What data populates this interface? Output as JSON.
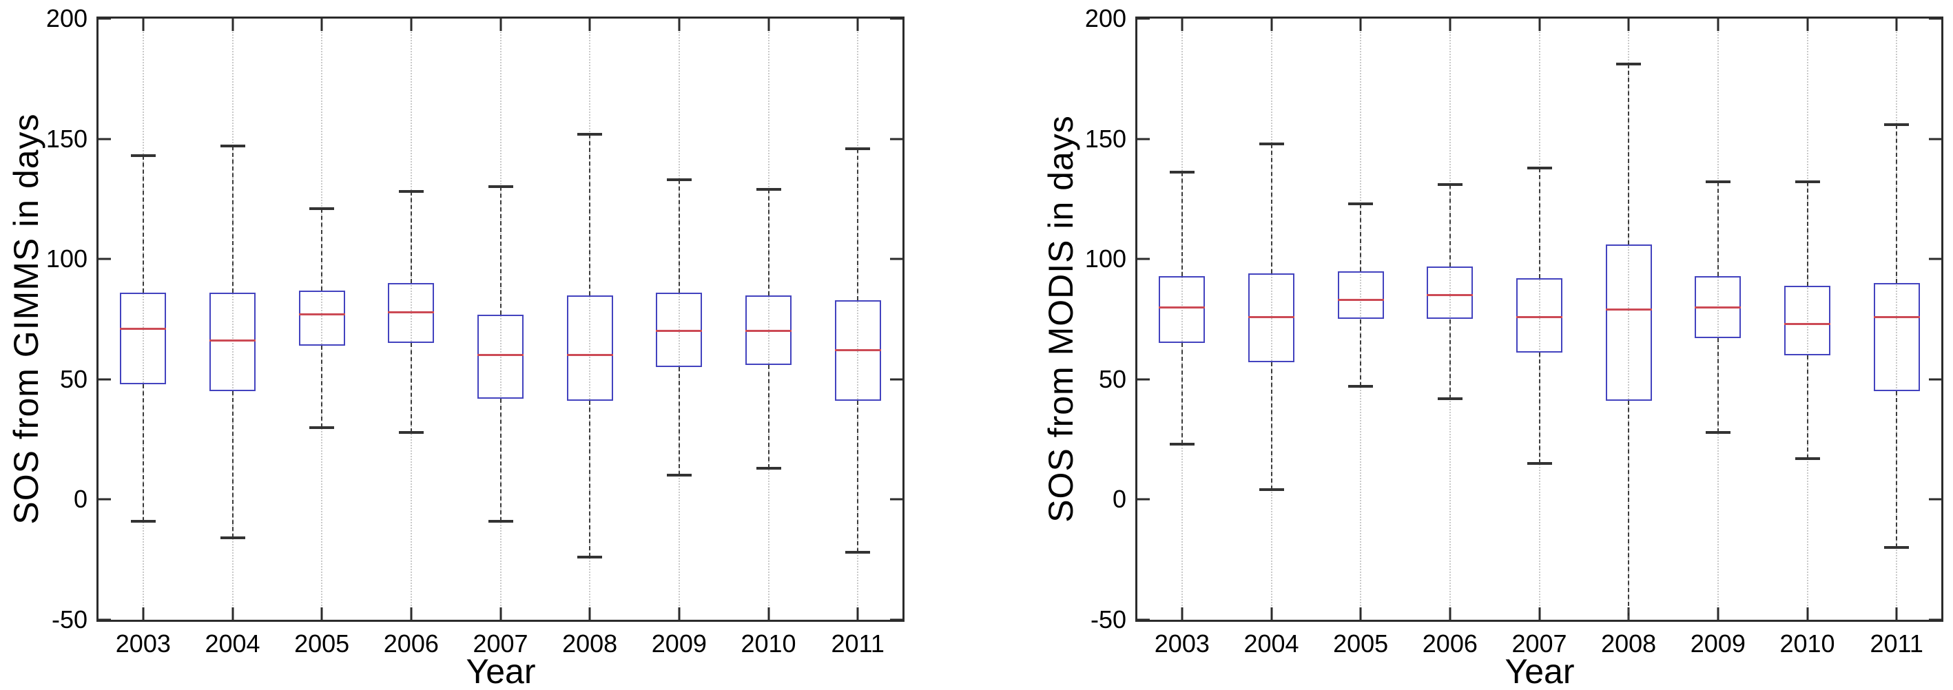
{
  "colors": {
    "axis": "#2b2b2b",
    "box": "#4343bf",
    "median": "#cc4a55",
    "whisker": "#3c3c3c",
    "cap": "#333333",
    "grid": "#c9c9c9",
    "background": "#ffffff"
  },
  "chart_data": [
    {
      "type": "boxplot",
      "title": "",
      "xlabel": "Year",
      "ylabel": "SOS from GIMMS in days",
      "categories": [
        "2003",
        "2004",
        "2005",
        "2006",
        "2007",
        "2008",
        "2009",
        "2010",
        "2011"
      ],
      "ylim": [
        -50,
        200
      ],
      "yticks": [
        200,
        150,
        100,
        50,
        0,
        -50
      ],
      "grid": "vertical-dotted",
      "legend": "none",
      "series": [
        {
          "label": "2003",
          "whisker_low": -9,
          "q1": 48,
          "median": 71,
          "q3": 86,
          "whisker_high": 143
        },
        {
          "label": "2004",
          "whisker_low": -16,
          "q1": 45,
          "median": 66,
          "q3": 86,
          "whisker_high": 147
        },
        {
          "label": "2005",
          "whisker_low": 30,
          "q1": 64,
          "median": 77,
          "q3": 87,
          "whisker_high": 121
        },
        {
          "label": "2006",
          "whisker_low": 28,
          "q1": 65,
          "median": 78,
          "q3": 90,
          "whisker_high": 128
        },
        {
          "label": "2007",
          "whisker_low": -9,
          "q1": 42,
          "median": 60,
          "q3": 77,
          "whisker_high": 130
        },
        {
          "label": "2008",
          "whisker_low": -24,
          "q1": 41,
          "median": 60,
          "q3": 85,
          "whisker_high": 152
        },
        {
          "label": "2009",
          "whisker_low": 10,
          "q1": 55,
          "median": 70,
          "q3": 86,
          "whisker_high": 133
        },
        {
          "label": "2010",
          "whisker_low": 13,
          "q1": 56,
          "median": 70,
          "q3": 85,
          "whisker_high": 129
        },
        {
          "label": "2011",
          "whisker_low": -22,
          "q1": 41,
          "median": 62,
          "q3": 83,
          "whisker_high": 146
        }
      ]
    },
    {
      "type": "boxplot",
      "title": "",
      "xlabel": "Year",
      "ylabel": "SOS from MODIS in days",
      "categories": [
        "2003",
        "2004",
        "2005",
        "2006",
        "2007",
        "2008",
        "2009",
        "2010",
        "2011"
      ],
      "ylim": [
        -50,
        200
      ],
      "yticks": [
        200,
        150,
        100,
        50,
        0,
        -50
      ],
      "grid": "vertical-dotted",
      "legend": "none",
      "series": [
        {
          "label": "2003",
          "whisker_low": 23,
          "q1": 65,
          "median": 80,
          "q3": 93,
          "whisker_high": 136
        },
        {
          "label": "2004",
          "whisker_low": 4,
          "q1": 57,
          "median": 76,
          "q3": 94,
          "whisker_high": 148
        },
        {
          "label": "2005",
          "whisker_low": 47,
          "q1": 75,
          "median": 83,
          "q3": 95,
          "whisker_high": 123
        },
        {
          "label": "2006",
          "whisker_low": 42,
          "q1": 75,
          "median": 85,
          "q3": 97,
          "whisker_high": 131
        },
        {
          "label": "2007",
          "whisker_low": 15,
          "q1": 61,
          "median": 76,
          "q3": 92,
          "whisker_high": 138
        },
        {
          "label": "2008",
          "whisker_low": -50,
          "whisker_low_clipped": true,
          "q1": 41,
          "median": 79,
          "q3": 106,
          "whisker_high": 181
        },
        {
          "label": "2009",
          "whisker_low": 28,
          "q1": 67,
          "median": 80,
          "q3": 93,
          "whisker_high": 132
        },
        {
          "label": "2010",
          "whisker_low": 17,
          "q1": 60,
          "median": 73,
          "q3": 89,
          "whisker_high": 132
        },
        {
          "label": "2011",
          "whisker_low": -20,
          "q1": 45,
          "median": 76,
          "q3": 90,
          "whisker_high": 156
        }
      ]
    }
  ]
}
